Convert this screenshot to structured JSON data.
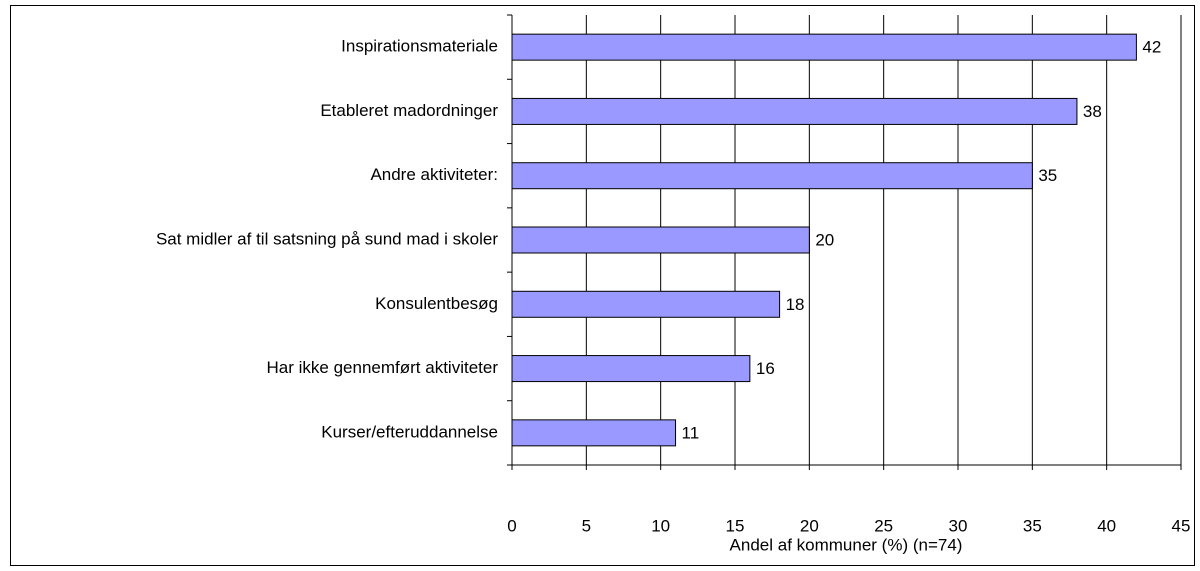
{
  "chart_data": {
    "type": "bar",
    "orientation": "horizontal",
    "categories": [
      "Inspirationsmateriale",
      "Etableret madordninger",
      "Andre aktiviteter:",
      "Sat midler af til satsning på sund mad i skoler",
      "Konsulentbesøg",
      "Har ikke gennemført aktiviteter",
      "Kurser/efteruddannelse"
    ],
    "values": [
      42,
      38,
      35,
      20,
      18,
      16,
      11
    ],
    "color": "#9999ff",
    "x_label": "Andel af kommuner (%) (n=74)",
    "xlim": [
      0,
      45
    ],
    "xticks": [
      0,
      5,
      10,
      15,
      20,
      25,
      30,
      35,
      40,
      45
    ],
    "grid": true
  }
}
